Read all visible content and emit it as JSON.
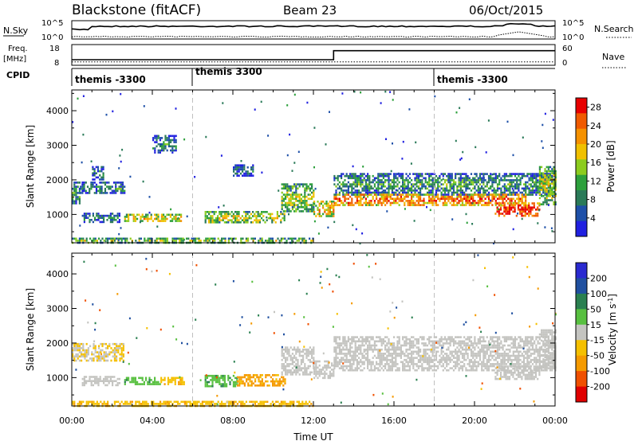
{
  "header": {
    "station": "Blackstone (fitACF)",
    "beam": "Beam 23",
    "date": "06/Oct/2015"
  },
  "nsky_panel": {
    "left_label": "N.Sky",
    "left_ticks": [
      "10^5",
      "10^0"
    ],
    "right_ticks": [
      "10^5",
      "10^0"
    ],
    "right_label": "N.Search"
  },
  "freq_panel": {
    "label_line1": "Freq.",
    "label_line2": "[MHz]",
    "left_ticks": [
      "18",
      "8"
    ],
    "right_ticks": [
      "60",
      "0"
    ],
    "right_label": "Nave",
    "freq_steps": [
      {
        "t": 0.0,
        "f": 10.5
      },
      {
        "t": 13.0,
        "f": 15.2
      },
      {
        "t": 24.0,
        "f": 15.2
      }
    ],
    "nave_level": 8
  },
  "cpid_panel": {
    "label": "CPID",
    "segments": [
      {
        "start": 0.0,
        "label": "themis -3300"
      },
      {
        "start": 6.0,
        "label": "themis 3300"
      },
      {
        "start": 18.0,
        "label": "themis -3300"
      }
    ]
  },
  "chart_data": [
    {
      "type": "heatmap",
      "name": "power-panel",
      "ylabel": "Slant Range [km]",
      "xlim": [
        0,
        24
      ],
      "ylim": [
        180,
        4600
      ],
      "yticks": [
        1000,
        2000,
        3000,
        4000
      ],
      "colorbar": {
        "label": "Power [dB]",
        "ticks": [
          "4",
          "8",
          "12",
          "16",
          "20",
          "24",
          "28"
        ],
        "tick_values": [
          4,
          8,
          12,
          16,
          20,
          24,
          28
        ],
        "range": [
          0,
          30
        ],
        "colors": [
          "#2020e0",
          "#1e50a8",
          "#2a7a58",
          "#2da03c",
          "#8ccc1e",
          "#f0c000",
          "#f59100",
          "#f05a00",
          "#e80000"
        ]
      },
      "echo_bands": [
        {
          "t0": 0.0,
          "t1": 0.4,
          "r0": 1300,
          "r1": 1950,
          "value": 8
        },
        {
          "t0": 0.4,
          "t1": 2.6,
          "r0": 1600,
          "r1": 1950,
          "value": 6
        },
        {
          "t0": 0.5,
          "t1": 2.4,
          "r0": 800,
          "r1": 1050,
          "value": 5
        },
        {
          "t0": 1.0,
          "t1": 1.6,
          "r0": 2000,
          "r1": 2400,
          "value": 5
        },
        {
          "t0": 2.6,
          "t1": 5.4,
          "r0": 800,
          "r1": 1020,
          "value": 16
        },
        {
          "t0": 6.6,
          "t1": 10.6,
          "r0": 780,
          "r1": 1100,
          "value": 14
        },
        {
          "t0": 10.4,
          "t1": 12.0,
          "r0": 1100,
          "r1": 1900,
          "value": 12
        },
        {
          "t0": 12.0,
          "t1": 13.0,
          "r0": 950,
          "r1": 1400,
          "value": 18
        },
        {
          "t0": 13.0,
          "t1": 24.0,
          "r0": 1600,
          "r1": 2200,
          "value": 8
        },
        {
          "t0": 13.0,
          "t1": 22.5,
          "r0": 1300,
          "r1": 1600,
          "value": 22
        },
        {
          "t0": 21.0,
          "t1": 23.2,
          "r0": 950,
          "r1": 1350,
          "value": 26
        },
        {
          "t0": 23.2,
          "t1": 24.0,
          "r0": 1300,
          "r1": 2400,
          "value": 14
        },
        {
          "t0": 0.0,
          "t1": 12.0,
          "r0": 200,
          "r1": 330,
          "value": 12
        },
        {
          "t0": 4.0,
          "t1": 5.2,
          "r0": 2800,
          "r1": 3300,
          "value": 6
        },
        {
          "t0": 8.0,
          "t1": 9.0,
          "r0": 2150,
          "r1": 2450,
          "value": 5
        }
      ]
    },
    {
      "type": "heatmap",
      "name": "velocity-panel",
      "ylabel": "Slant Range [km]",
      "xlabel": "Time UT",
      "xlim": [
        0,
        24
      ],
      "xticks": [
        "00:00",
        "04:00",
        "08:00",
        "12:00",
        "16:00",
        "20:00",
        "00:00"
      ],
      "xtick_values": [
        0,
        4,
        8,
        12,
        16,
        20,
        24
      ],
      "ylim": [
        180,
        4600
      ],
      "yticks": [
        1000,
        2000,
        3000,
        4000
      ],
      "colorbar": {
        "label": "Velocity [m s^-1]",
        "ticks": [
          "200",
          "100",
          "50",
          "15",
          "-15",
          "-50",
          "-100",
          "-200"
        ],
        "colors": [
          "#2a2ad0",
          "#2050a0",
          "#2a8050",
          "#58c040",
          "#c4c4c0",
          "#f5c000",
          "#f59a00",
          "#f05000",
          "#e00000"
        ]
      },
      "echo_bands": [
        {
          "t0": 0.0,
          "t1": 2.6,
          "r0": 1500,
          "r1": 2000,
          "value": -15
        },
        {
          "t0": 0.5,
          "t1": 2.4,
          "r0": 800,
          "r1": 1050,
          "value": 0
        },
        {
          "t0": 2.6,
          "t1": 4.4,
          "r0": 820,
          "r1": 1020,
          "value": 40
        },
        {
          "t0": 4.4,
          "t1": 5.6,
          "r0": 820,
          "r1": 1020,
          "value": -40
        },
        {
          "t0": 6.6,
          "t1": 8.2,
          "r0": 780,
          "r1": 1080,
          "value": 40
        },
        {
          "t0": 8.2,
          "t1": 10.6,
          "r0": 780,
          "r1": 1100,
          "value": -60
        },
        {
          "t0": 10.4,
          "t1": 12.0,
          "r0": 1100,
          "r1": 1900,
          "value": 0
        },
        {
          "t0": 12.0,
          "t1": 13.0,
          "r0": 1000,
          "r1": 1500,
          "value": 0
        },
        {
          "t0": 13.0,
          "t1": 24.0,
          "r0": 1200,
          "r1": 2200,
          "value": 0
        },
        {
          "t0": 21.0,
          "t1": 23.2,
          "r0": 950,
          "r1": 1350,
          "value": 0
        },
        {
          "t0": 23.2,
          "t1": 24.0,
          "r0": 1300,
          "r1": 2400,
          "value": 0
        },
        {
          "t0": 0.0,
          "t1": 12.0,
          "r0": 200,
          "r1": 330,
          "value": -40
        }
      ]
    }
  ]
}
